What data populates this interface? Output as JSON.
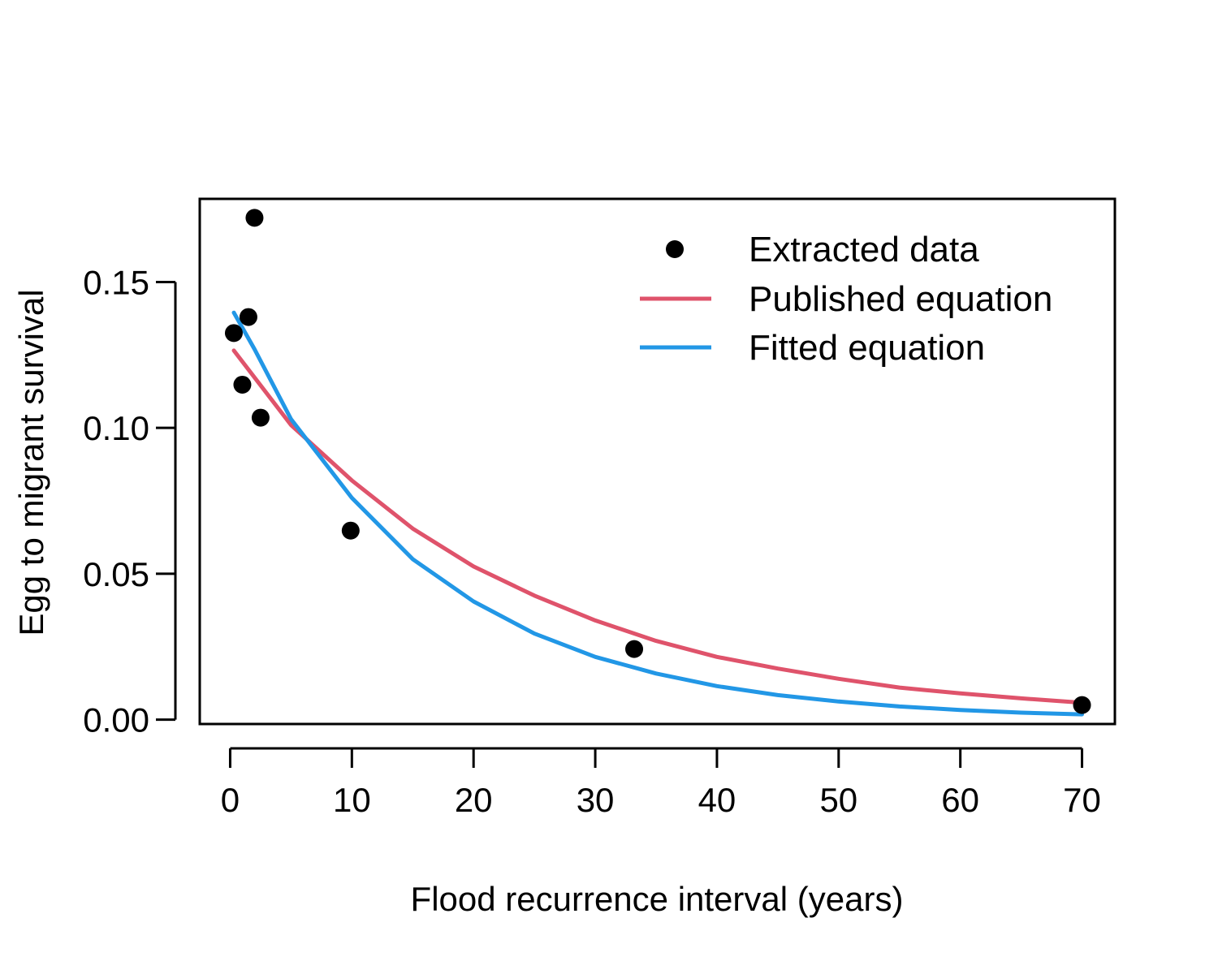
{
  "chart_data": {
    "type": "scatter",
    "title": "",
    "xlabel": "Flood recurrence interval (years)",
    "ylabel": "Egg to migrant survival",
    "xlim": [
      -2.5,
      72.7
    ],
    "ylim": [
      -0.0015,
      0.1785
    ],
    "xticks": [
      0,
      10,
      20,
      30,
      40,
      50,
      60,
      70
    ],
    "yticks": [
      0.0,
      0.05,
      0.1,
      0.15
    ],
    "xtick_labels": [
      "0",
      "10",
      "20",
      "30",
      "40",
      "50",
      "60",
      "70"
    ],
    "ytick_labels": [
      "0.00",
      "0.05",
      "0.10",
      "0.15"
    ],
    "grid": false,
    "legend_position": "top-right",
    "series": [
      {
        "name": "Extracted data",
        "kind": "points",
        "color": "#000000",
        "x": [
          0.3,
          1.0,
          1.5,
          2.0,
          2.5,
          9.9,
          33.2,
          70.0
        ],
        "y": [
          0.1325,
          0.1148,
          0.138,
          0.172,
          0.1035,
          0.0648,
          0.0242,
          0.005
        ]
      },
      {
        "name": "Published equation",
        "kind": "line",
        "color": "#DF536B",
        "x": [
          0.3,
          5,
          10,
          15,
          20,
          25,
          30,
          35,
          40,
          45,
          50,
          55,
          60,
          65,
          70
        ],
        "y": [
          0.1265,
          0.101,
          0.082,
          0.0655,
          0.0525,
          0.0425,
          0.034,
          0.027,
          0.0215,
          0.0175,
          0.014,
          0.011,
          0.009,
          0.0073,
          0.0058
        ]
      },
      {
        "name": "Fitted equation",
        "kind": "line",
        "color": "#2297E6",
        "x": [
          0.3,
          2,
          5,
          10,
          15,
          20,
          25,
          30,
          35,
          40,
          45,
          50,
          55,
          60,
          65,
          70
        ],
        "y": [
          0.1395,
          0.127,
          0.103,
          0.076,
          0.055,
          0.0405,
          0.0295,
          0.0215,
          0.0158,
          0.0115,
          0.0084,
          0.0062,
          0.0045,
          0.0033,
          0.0024,
          0.0018
        ]
      }
    ]
  }
}
